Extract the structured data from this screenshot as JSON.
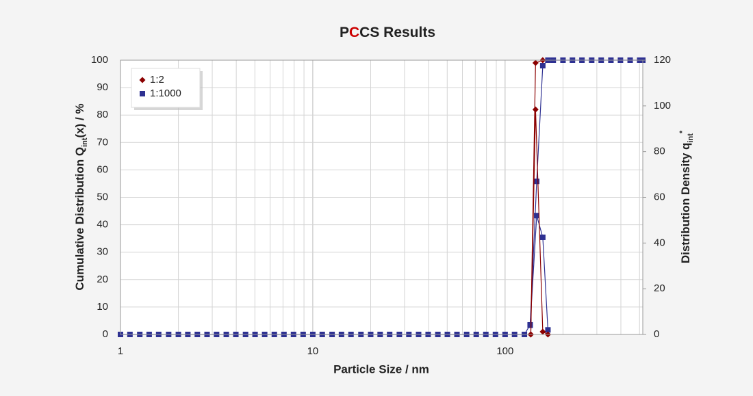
{
  "chart_data": {
    "type": "line",
    "title": [
      "P",
      "C",
      "CS Results"
    ],
    "title_colors": [
      "#222222",
      "#cc0000",
      "#222222"
    ],
    "x_label": "Particle Size / nm",
    "y_label": [
      "Cumulative Distribution Q",
      "int",
      "(x) / %"
    ],
    "y2_label": [
      "Distribution Density q",
      "int",
      "*"
    ],
    "log_x": true,
    "grid": true,
    "legend": "upper left",
    "xlim": [
      1,
      520
    ],
    "xticks": [
      1,
      10,
      100
    ],
    "xgrid_minor": [
      2,
      3,
      4,
      5,
      6,
      7,
      8,
      9,
      20,
      30,
      40,
      50,
      60,
      70,
      80,
      90,
      200,
      300,
      400,
      500
    ],
    "ylim": [
      0,
      100
    ],
    "yticks": [
      0,
      10,
      20,
      30,
      40,
      50,
      60,
      70,
      80,
      90,
      100
    ],
    "y2lim": [
      0,
      120
    ],
    "y2ticks": [
      0,
      20,
      40,
      60,
      80,
      100,
      120
    ],
    "series": [
      {
        "name": "1:1000",
        "color": "#2e3192",
        "marker": "square",
        "x": [
          1,
          1.12,
          1.26,
          1.41,
          1.58,
          1.78,
          2,
          2.24,
          2.51,
          2.82,
          3.16,
          3.55,
          3.98,
          4.47,
          5.01,
          5.62,
          6.31,
          7.08,
          7.94,
          8.91,
          10,
          11.2,
          12.6,
          14.1,
          15.8,
          17.8,
          20,
          22.4,
          25.1,
          28.2,
          31.6,
          35.5,
          39.8,
          44.7,
          50.1,
          56.2,
          63.1,
          70.8,
          79.4,
          89.1,
          100,
          112,
          126,
          135,
          146,
          157,
          167,
          178,
          200,
          224,
          251,
          282,
          316,
          355,
          398,
          447,
          501,
          520
        ],
        "values": [
          0,
          0,
          0,
          0,
          0,
          0,
          0,
          0,
          0,
          0,
          0,
          0,
          0,
          0,
          0,
          0,
          0,
          0,
          0,
          0,
          0,
          0,
          0,
          0,
          0,
          0,
          0,
          0,
          0,
          0,
          0,
          0,
          0,
          0,
          0,
          0,
          0,
          0,
          0,
          0,
          0,
          0,
          0,
          3.5,
          55.8,
          98,
          100,
          100,
          100,
          100,
          100,
          100,
          100,
          100,
          100,
          100,
          100,
          100
        ]
      },
      {
        "color": "#2e3192",
        "marker": "square",
        "axis": "y2",
        "x": [
          135,
          146,
          157,
          167
        ],
        "values": [
          4,
          52,
          42.5,
          2
        ]
      },
      {
        "name": "1:2",
        "color": "#8b0000",
        "marker": "diamond",
        "x": [
          136,
          144,
          157
        ],
        "values": [
          0,
          99,
          100
        ]
      },
      {
        "color": "#8b0000",
        "marker": "diamond",
        "axis": "y2",
        "x": [
          136,
          144,
          157,
          167
        ],
        "values": [
          0,
          98.4,
          1.2,
          0
        ]
      }
    ]
  }
}
